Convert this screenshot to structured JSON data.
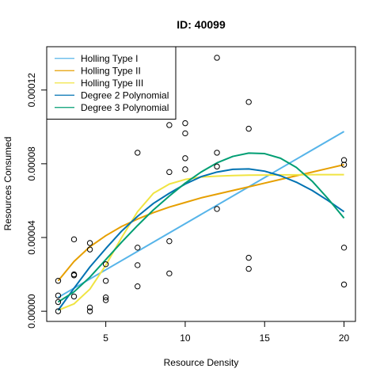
{
  "chart_data": {
    "type": "scatter",
    "title": "ID: 40099",
    "xlabel": "Resource Density",
    "ylabel": "Resources Consumed",
    "xlim": [
      1.28,
      20.72
    ],
    "ylim": [
      -5.52e-06,
      0.0001435
    ],
    "xticks": [
      5,
      10,
      15,
      20
    ],
    "xtick_labels": [
      "5",
      "10",
      "15",
      "20"
    ],
    "yticks": [
      0.0,
      4e-05,
      8e-05,
      0.00012
    ],
    "ytick_labels": [
      "0.00000",
      "0.00004",
      "0.00008",
      "0.00012"
    ],
    "grid": false,
    "legend_position": "top-left",
    "points": [
      [
        2,
        1.65e-05
      ],
      [
        2,
        8.5e-06
      ],
      [
        2,
        5e-06
      ],
      [
        2,
        0.0
      ],
      [
        3,
        3.9e-05
      ],
      [
        3,
        2e-05
      ],
      [
        3,
        1.95e-05
      ],
      [
        3,
        8e-06
      ],
      [
        4,
        3.7e-05
      ],
      [
        4,
        3.35e-05
      ],
      [
        4,
        2e-06
      ],
      [
        4,
        0.0
      ],
      [
        5,
        2.55e-05
      ],
      [
        5,
        1.65e-05
      ],
      [
        5,
        7.5e-06
      ],
      [
        5,
        6e-06
      ],
      [
        7,
        8.6e-05
      ],
      [
        7,
        3.45e-05
      ],
      [
        7,
        2.5e-05
      ],
      [
        7,
        1.35e-05
      ],
      [
        9,
        0.000101
      ],
      [
        9,
        7.55e-05
      ],
      [
        9,
        3.8e-05
      ],
      [
        9,
        2.05e-05
      ],
      [
        10,
        0.000102
      ],
      [
        10,
        9.65e-05
      ],
      [
        10,
        8.3e-05
      ],
      [
        10,
        7.7e-05
      ],
      [
        12,
        0.0001375
      ],
      [
        12,
        8.6e-05
      ],
      [
        12,
        7.85e-05
      ],
      [
        12,
        5.55e-05
      ],
      [
        14,
        0.0001135
      ],
      [
        14,
        9.9e-05
      ],
      [
        14,
        2.9e-05
      ],
      [
        14,
        2.3e-05
      ],
      [
        20,
        8.2e-05
      ],
      [
        20,
        7.95e-05
      ],
      [
        20,
        3.45e-05
      ],
      [
        20,
        1.45e-05
      ]
    ],
    "series": [
      {
        "name": "Holling Type I",
        "color": "#56B4E9",
        "x": [
          2,
          20
        ],
        "y": [
          7.5e-06,
          9.75e-05
        ]
      },
      {
        "name": "Holling Type II",
        "color": "#E69F00",
        "x": [
          2,
          3,
          4,
          5,
          6,
          7,
          8,
          9,
          10,
          11,
          12,
          13,
          14,
          15,
          16,
          17,
          18,
          19,
          20
        ],
        "y": [
          1.65e-05,
          2.7e-05,
          3.5e-05,
          4.1e-05,
          4.6e-05,
          5e-05,
          5.35e-05,
          5.65e-05,
          5.9e-05,
          6.15e-05,
          6.35e-05,
          6.55e-05,
          6.75e-05,
          6.95e-05,
          7.15e-05,
          7.35e-05,
          7.55e-05,
          7.75e-05,
          7.95e-05
        ]
      },
      {
        "name": "Holling Type III",
        "color": "#F0E442",
        "x": [
          2,
          3,
          4,
          5,
          6,
          7,
          8,
          9,
          10,
          11,
          12,
          13,
          14,
          15,
          16,
          17,
          18,
          19,
          20
        ],
        "y": [
          5e-07,
          4e-06,
          1.2e-05,
          2.5e-05,
          4e-05,
          5.4e-05,
          6.4e-05,
          6.9e-05,
          7.15e-05,
          7.28e-05,
          7.33e-05,
          7.36e-05,
          7.38e-05,
          7.39e-05,
          7.4e-05,
          7.4e-05,
          7.41e-05,
          7.41e-05,
          7.41e-05
        ]
      },
      {
        "name": "Degree 2 Polynomial",
        "color": "#0072B2",
        "x": [
          2,
          3,
          4,
          5,
          6,
          7,
          8,
          9,
          10,
          11,
          12,
          13,
          14,
          15,
          16,
          17,
          18,
          19,
          20
        ],
        "y": [
          5e-07,
          1.25e-05,
          2.4e-05,
          3.4e-05,
          4.35e-05,
          5.15e-05,
          5.85e-05,
          6.4e-05,
          6.9e-05,
          7.3e-05,
          7.55e-05,
          7.7e-05,
          7.72e-05,
          7.6e-05,
          7.35e-05,
          7e-05,
          6.55e-05,
          6e-05,
          5.4e-05
        ]
      },
      {
        "name": "Degree 3 Polynomial",
        "color": "#009E73",
        "x": [
          2,
          3,
          4,
          5,
          6,
          7,
          8,
          9,
          10,
          11,
          12,
          13,
          14,
          15,
          16,
          17,
          18,
          19,
          20
        ],
        "y": [
          5e-06,
          1.05e-05,
          1.85e-05,
          2.8e-05,
          3.75e-05,
          4.65e-05,
          5.5e-05,
          6.25e-05,
          6.95e-05,
          7.55e-05,
          8.05e-05,
          8.4e-05,
          8.58e-05,
          8.55e-05,
          8.3e-05,
          7.8e-05,
          7.05e-05,
          6.1e-05,
          5.05e-05
        ]
      }
    ]
  }
}
